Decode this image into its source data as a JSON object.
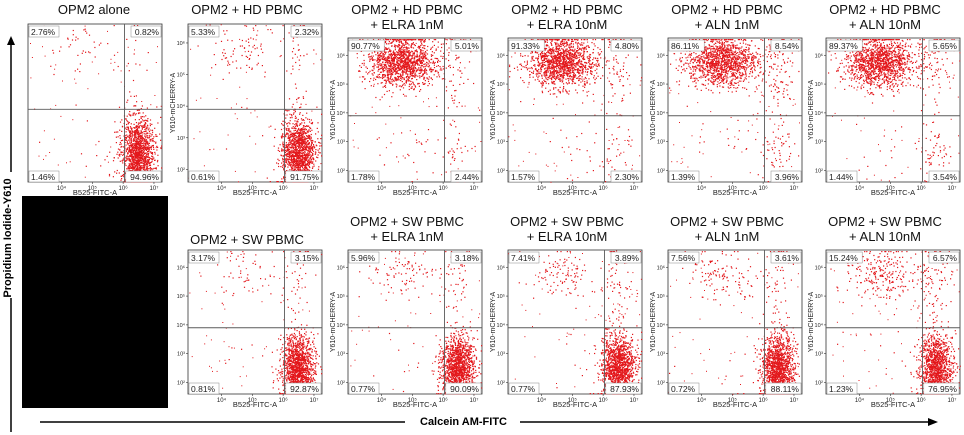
{
  "figure": {
    "y_axis_label": "Propidium Iodide-Y610",
    "x_axis_label": "Calcein AM-FITC",
    "colors": {
      "events": "#e3171b",
      "gate": "#5a5a5a",
      "background": "#000000",
      "panel": "#ffffff"
    }
  },
  "chart_data": [
    {
      "type": "scatter",
      "title_lines": [
        "OPM2 alone"
      ],
      "ylabel": "",
      "xlabel": "B525-FITC-A",
      "quadrants": {
        "upper_left": "2.76%",
        "upper_right": "0.82%",
        "lower_left": "1.46%",
        "lower_right": "94.96%"
      },
      "x_ticks": [
        "10⁴",
        "10⁵",
        "10⁶",
        "10⁷"
      ],
      "y_ticks": []
    },
    {
      "type": "scatter",
      "title_lines": [
        "OPM2 + HD PBMC"
      ],
      "ylabel": "Y610-mCHERRY-A",
      "xlabel": "B525-FITC-A",
      "quadrants": {
        "upper_left": "5.33%",
        "upper_right": "2.32%",
        "lower_left": "0.61%",
        "lower_right": "91.75%"
      },
      "x_ticks": [
        "10⁴",
        "10⁵",
        "10⁶",
        "10⁷"
      ],
      "y_ticks": [
        "10⁶",
        "10⁵",
        "10⁴",
        "10³",
        "10²"
      ]
    },
    {
      "type": "scatter",
      "title_lines": [
        "OPM2 + HD PBMC",
        "+ ELRA 1nM"
      ],
      "ylabel": "Y610-mCHERRY-A",
      "xlabel": "B525-FITC-A",
      "quadrants": {
        "upper_left": "90.77%",
        "upper_right": "5.01%",
        "lower_left": "1.78%",
        "lower_right": "2.44%"
      },
      "x_ticks": [
        "10⁴",
        "10⁵",
        "10⁶",
        "10⁷"
      ],
      "y_ticks": [
        "10⁶",
        "10⁵",
        "10⁴",
        "10³",
        "10²"
      ]
    },
    {
      "type": "scatter",
      "title_lines": [
        "OPM2 + HD PBMC",
        "+ ELRA 10nM"
      ],
      "ylabel": "Y610-mCHERRY-A",
      "xlabel": "B525-FITC-A",
      "quadrants": {
        "upper_left": "91.33%",
        "upper_right": "4.80%",
        "lower_left": "1.57%",
        "lower_right": "2.30%"
      },
      "x_ticks": [
        "10⁴",
        "10⁵",
        "10⁶",
        "10⁷"
      ],
      "y_ticks": [
        "10⁶",
        "10⁵",
        "10⁴",
        "10³",
        "10²"
      ]
    },
    {
      "type": "scatter",
      "title_lines": [
        "OPM2 + HD PBMC",
        "+ ALN 1nM"
      ],
      "ylabel": "Y610-mCHERRY-A",
      "xlabel": "B525-FITC-A",
      "quadrants": {
        "upper_left": "86.11%",
        "upper_right": "8.54%",
        "lower_left": "1.39%",
        "lower_right": "3.96%"
      },
      "x_ticks": [
        "10⁴",
        "10⁵",
        "10⁶",
        "10⁷"
      ],
      "y_ticks": [
        "10⁶",
        "10⁵",
        "10⁴",
        "10³",
        "10²"
      ]
    },
    {
      "type": "scatter",
      "title_lines": [
        "OPM2 + HD PBMC",
        "+ ALN 10nM"
      ],
      "ylabel": "Y610-mCHERRY-A",
      "xlabel": "B525-FITC-A",
      "quadrants": {
        "upper_left": "89.37%",
        "upper_right": "5.65%",
        "lower_left": "1.44%",
        "lower_right": "3.54%"
      },
      "x_ticks": [
        "10⁴",
        "10⁵",
        "10⁶",
        "10⁷"
      ],
      "y_ticks": [
        "10⁶",
        "10⁵",
        "10⁴",
        "10³",
        "10²"
      ]
    },
    {
      "type": "scatter",
      "title_lines": [
        "OPM2 + SW PBMC"
      ],
      "ylabel": "",
      "xlabel": "B525-FITC-A",
      "quadrants": {
        "upper_left": "3.17%",
        "upper_right": "3.15%",
        "lower_left": "0.81%",
        "lower_right": "92.87%"
      },
      "x_ticks": [
        "10⁴",
        "10⁵",
        "10⁶",
        "10⁷"
      ],
      "y_ticks": [
        "10⁶",
        "10⁵",
        "10⁴",
        "10³",
        "10²"
      ]
    },
    {
      "type": "scatter",
      "title_lines": [
        "OPM2 + SW PBMC",
        "+ ELRA 1nM"
      ],
      "ylabel": "Y610-mCHERRY-A",
      "xlabel": "B525-FITC-A",
      "quadrants": {
        "upper_left": "5.96%",
        "upper_right": "3.18%",
        "lower_left": "0.77%",
        "lower_right": "90.09%"
      },
      "x_ticks": [
        "10⁴",
        "10⁵",
        "10⁶",
        "10⁷"
      ],
      "y_ticks": [
        "10⁶",
        "10⁵",
        "10⁴",
        "10³",
        "10²"
      ]
    },
    {
      "type": "scatter",
      "title_lines": [
        "OPM2 + SW PBMC",
        "+ ELRA 10nM"
      ],
      "ylabel": "Y610-mCHERRY-A",
      "xlabel": "B525-FITC-A",
      "quadrants": {
        "upper_left": "7.41%",
        "upper_right": "3.89%",
        "lower_left": "0.77%",
        "lower_right": "87.93%"
      },
      "x_ticks": [
        "10⁴",
        "10⁵",
        "10⁶",
        "10⁷"
      ],
      "y_ticks": [
        "10⁶",
        "10⁵",
        "10⁴",
        "10³",
        "10²"
      ]
    },
    {
      "type": "scatter",
      "title_lines": [
        "OPM2 + SW PBMC",
        "+ ALN 1nM"
      ],
      "ylabel": "Y610-mCHERRY-A",
      "xlabel": "B525-FITC-A",
      "quadrants": {
        "upper_left": "7.56%",
        "upper_right": "3.61%",
        "lower_left": "0.72%",
        "lower_right": "88.11%"
      },
      "x_ticks": [
        "10⁴",
        "10⁵",
        "10⁶",
        "10⁷"
      ],
      "y_ticks": [
        "10⁶",
        "10⁵",
        "10⁴",
        "10³",
        "10²"
      ]
    },
    {
      "type": "scatter",
      "title_lines": [
        "OPM2 + SW PBMC",
        "+ ALN 10nM"
      ],
      "ylabel": "Y610-mCHERRY-A",
      "xlabel": "B525-FITC-A",
      "quadrants": {
        "upper_left": "15.24%",
        "upper_right": "6.57%",
        "lower_left": "1.23%",
        "lower_right": "76.95%"
      },
      "x_ticks": [
        "10⁴",
        "10⁵",
        "10⁶",
        "10⁷"
      ],
      "y_ticks": [
        "10⁶",
        "10⁵",
        "10⁴",
        "10³",
        "10²"
      ]
    }
  ]
}
